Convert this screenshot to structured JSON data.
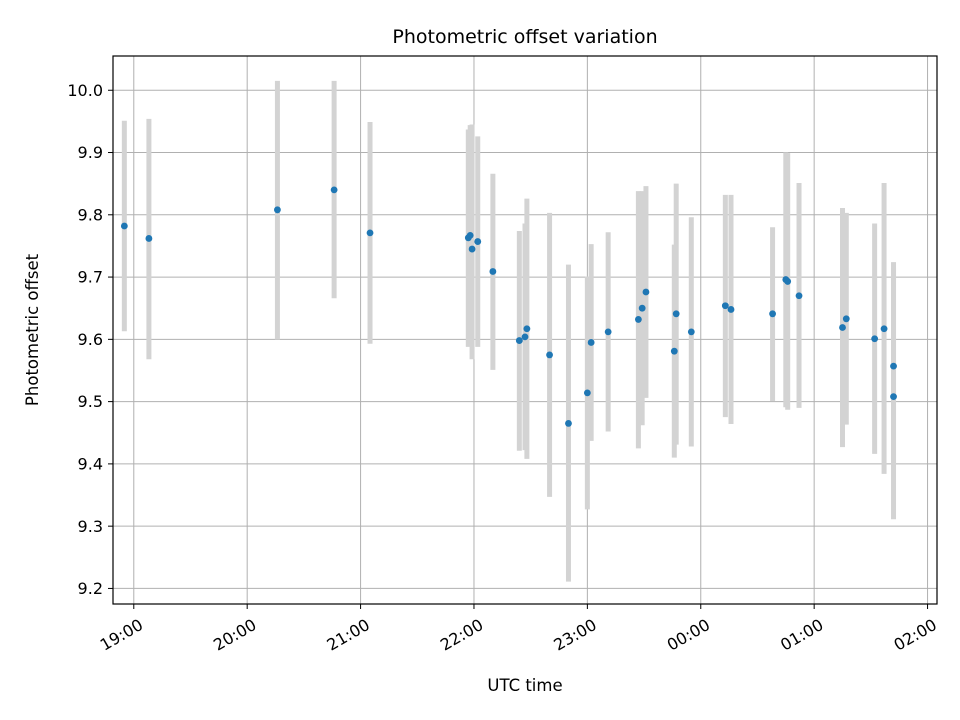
{
  "chart_data": {
    "type": "scatter",
    "title": "Photometric offset variation",
    "xlabel": "UTC time",
    "ylabel": "Photometric offset",
    "xlim": [
      "18:49",
      "02:05"
    ],
    "ylim": [
      9.175,
      10.055
    ],
    "grid": true,
    "x_ticks": [
      "19:00",
      "20:00",
      "21:00",
      "22:00",
      "23:00",
      "00:00",
      "01:00",
      "02:00"
    ],
    "y_ticks": [
      "9.2",
      "9.3",
      "9.4",
      "9.5",
      "9.6",
      "9.7",
      "9.8",
      "9.9",
      "10.0"
    ],
    "colors": {
      "point": "#1f77b4",
      "errorbar": "#d3d3d3",
      "grid": "#b0b0b0"
    },
    "points": [
      {
        "x": "18:55",
        "y": 9.782,
        "low": 9.613,
        "high": 9.951
      },
      {
        "x": "19:08",
        "y": 9.762,
        "low": 9.568,
        "high": 9.954
      },
      {
        "x": "20:16",
        "y": 9.808,
        "low": 9.6,
        "high": 10.015
      },
      {
        "x": "20:46",
        "y": 9.84,
        "low": 9.666,
        "high": 10.015
      },
      {
        "x": "21:05",
        "y": 9.771,
        "low": 9.593,
        "high": 9.949
      },
      {
        "x": "21:57",
        "y": 9.763,
        "low": 9.588,
        "high": 9.937
      },
      {
        "x": "21:58",
        "y": 9.767,
        "low": 9.59,
        "high": 9.944
      },
      {
        "x": "21:59",
        "y": 9.745,
        "low": 9.568,
        "high": 9.945
      },
      {
        "x": "22:02",
        "y": 9.757,
        "low": 9.588,
        "high": 9.926
      },
      {
        "x": "22:10",
        "y": 9.709,
        "low": 9.551,
        "high": 9.866
      },
      {
        "x": "22:24",
        "y": 9.598,
        "low": 9.421,
        "high": 9.774
      },
      {
        "x": "22:27",
        "y": 9.604,
        "low": 9.422,
        "high": 9.786
      },
      {
        "x": "22:28",
        "y": 9.617,
        "low": 9.408,
        "high": 9.826
      },
      {
        "x": "22:40",
        "y": 9.575,
        "low": 9.347,
        "high": 9.803
      },
      {
        "x": "22:50",
        "y": 9.465,
        "low": 9.211,
        "high": 9.72
      },
      {
        "x": "23:00",
        "y": 9.514,
        "low": 9.327,
        "high": 9.701
      },
      {
        "x": "23:02",
        "y": 9.595,
        "low": 9.437,
        "high": 9.753
      },
      {
        "x": "23:11",
        "y": 9.612,
        "low": 9.452,
        "high": 9.772
      },
      {
        "x": "23:27",
        "y": 9.632,
        "low": 9.425,
        "high": 9.838
      },
      {
        "x": "23:29",
        "y": 9.65,
        "low": 9.462,
        "high": 9.838
      },
      {
        "x": "23:31",
        "y": 9.676,
        "low": 9.506,
        "high": 9.846
      },
      {
        "x": "23:46",
        "y": 9.581,
        "low": 9.41,
        "high": 9.752
      },
      {
        "x": "23:47",
        "y": 9.641,
        "low": 9.431,
        "high": 9.85
      },
      {
        "x": "23:55",
        "y": 9.612,
        "low": 9.428,
        "high": 9.796
      },
      {
        "x": "00:13",
        "y": 9.654,
        "low": 9.475,
        "high": 9.832
      },
      {
        "x": "00:16",
        "y": 9.648,
        "low": 9.464,
        "high": 9.832
      },
      {
        "x": "00:38",
        "y": 9.641,
        "low": 9.501,
        "high": 9.78
      },
      {
        "x": "00:45",
        "y": 9.696,
        "low": 9.491,
        "high": 9.9
      },
      {
        "x": "00:46",
        "y": 9.693,
        "low": 9.487,
        "high": 9.899
      },
      {
        "x": "00:52",
        "y": 9.67,
        "low": 9.49,
        "high": 9.851
      },
      {
        "x": "01:15",
        "y": 9.619,
        "low": 9.427,
        "high": 9.811
      },
      {
        "x": "01:17",
        "y": 9.633,
        "low": 9.463,
        "high": 9.803
      },
      {
        "x": "01:32",
        "y": 9.601,
        "low": 9.416,
        "high": 9.786
      },
      {
        "x": "01:37",
        "y": 9.617,
        "low": 9.384,
        "high": 9.851
      },
      {
        "x": "01:42",
        "y": 9.557,
        "low": 9.4,
        "high": 9.715
      },
      {
        "x": "01:42",
        "y": 9.508,
        "low": 9.311,
        "high": 9.724
      }
    ]
  }
}
